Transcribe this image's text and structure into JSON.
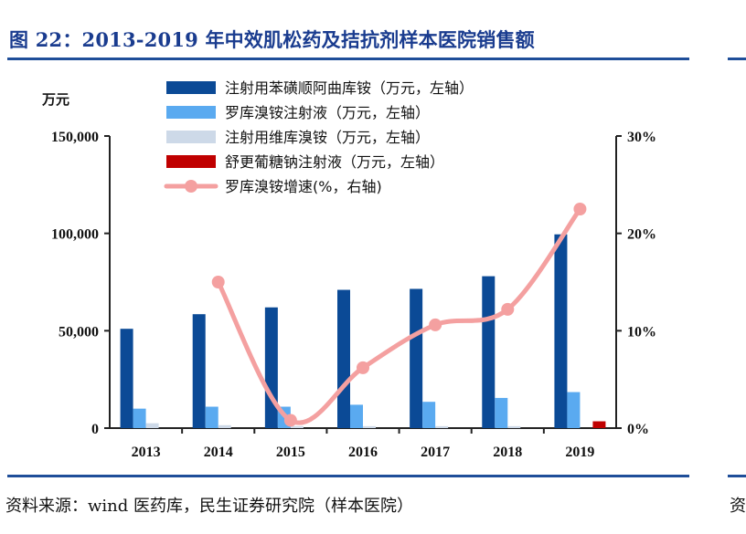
{
  "page": {
    "title": "图 22：2013-2019 年中效肌松药及拮抗剂样本医院销售额",
    "source": "资料来源：wind 医药库，民生证券研究院（样本医院）",
    "source_stub": "资",
    "left_unit": "万元"
  },
  "colors": {
    "rule": "#1f4e99",
    "title": "#1a3c8f"
  },
  "chart_data": {
    "type": "bar",
    "categories": [
      "2013",
      "2014",
      "2015",
      "2016",
      "2017",
      "2018",
      "2019"
    ],
    "y_left": {
      "range": [
        0,
        150000
      ],
      "ticks": [
        "0",
        "50,000",
        "100,000",
        "150,000"
      ],
      "tick_values": [
        0,
        50000,
        100000,
        150000
      ]
    },
    "y_right": {
      "range": [
        0,
        30
      ],
      "ticks": [
        "0%",
        "10%",
        "20%",
        "30%"
      ],
      "tick_values": [
        0,
        10,
        20,
        30
      ]
    },
    "series": [
      {
        "name": "注射用苯磺顺阿曲库铵（万元，左轴）",
        "type": "bar",
        "axis": "left",
        "color": "#0b4a96",
        "values": [
          51000,
          58500,
          62000,
          71000,
          71500,
          78000,
          99500
        ]
      },
      {
        "name": "罗库溴铵注射液（万元，左轴）",
        "type": "bar",
        "axis": "left",
        "color": "#5aaaf0",
        "values": [
          10000,
          11000,
          11000,
          12000,
          13500,
          15500,
          18500
        ]
      },
      {
        "name": "注射用维库溴铵（万元，左轴）",
        "type": "bar",
        "axis": "left",
        "color": "#cdd9e8",
        "values": [
          2500,
          1500,
          1000,
          1000,
          1000,
          1000,
          0
        ]
      },
      {
        "name": "舒更葡糖钠注射液（万元，左轴）",
        "type": "bar",
        "axis": "left",
        "color": "#c00000",
        "values": [
          0,
          0,
          0,
          0,
          0,
          0,
          3500
        ]
      },
      {
        "name": "罗库溴铵增速(%，右轴)",
        "type": "line",
        "axis": "right",
        "color": "#f4a0a0",
        "values": [
          null,
          15.0,
          0.8,
          6.2,
          10.6,
          12.2,
          22.5
        ]
      }
    ],
    "legend_position": "top-center"
  }
}
